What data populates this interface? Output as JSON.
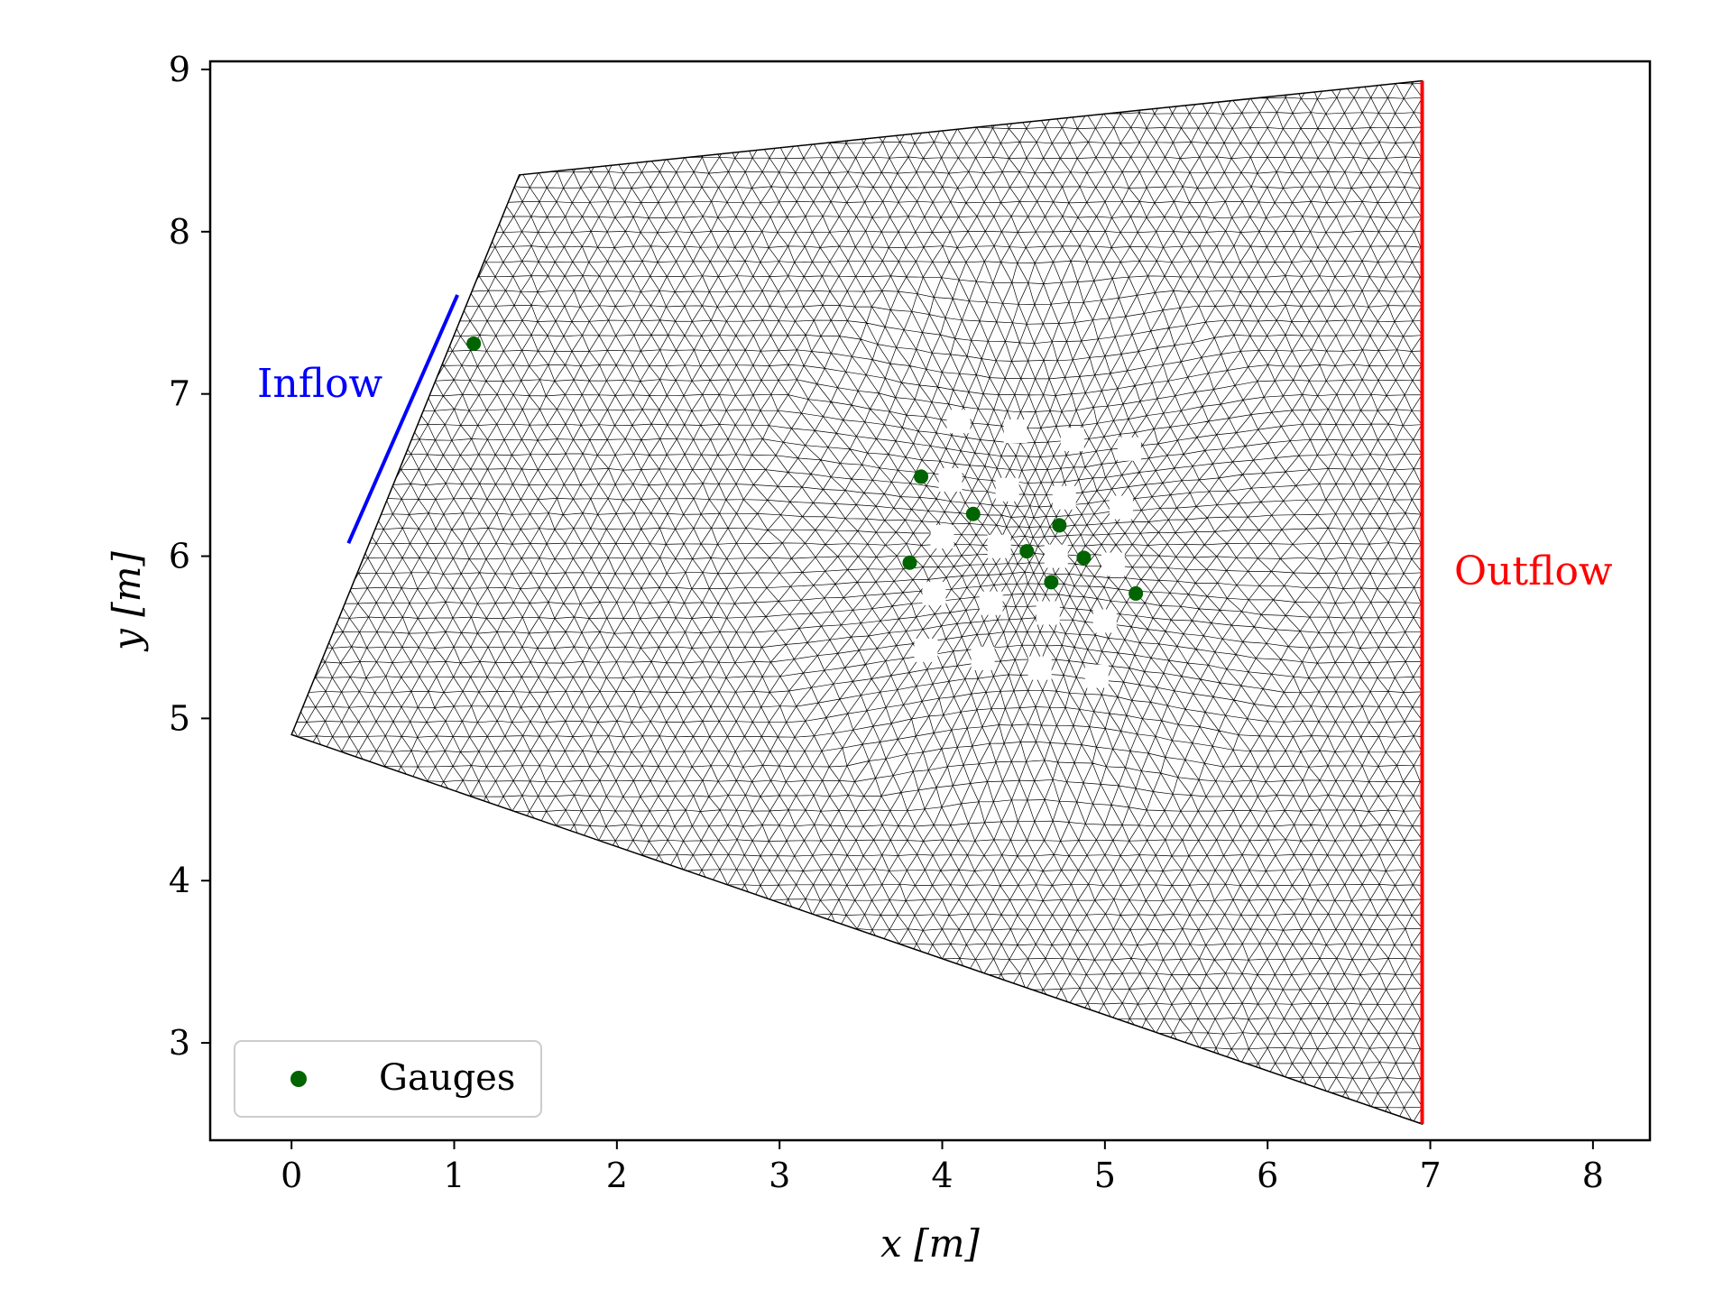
{
  "chart_data": {
    "type": "scatter",
    "title": "",
    "xlabel": "x [m]",
    "ylabel": "y [m]",
    "xlim": [
      -0.5,
      8.35
    ],
    "ylim": [
      2.4,
      9.05
    ],
    "xticks": [
      "0",
      "1",
      "2",
      "3",
      "4",
      "5",
      "6",
      "7",
      "8"
    ],
    "yticks": [
      "3",
      "4",
      "5",
      "6",
      "7",
      "8",
      "9"
    ],
    "domain_polygon": [
      [
        0.0,
        4.9
      ],
      [
        1.4,
        8.35
      ],
      [
        6.95,
        8.93
      ],
      [
        6.95,
        2.5
      ]
    ],
    "inflow_boundary": {
      "label": "Inflow",
      "color": "#0000ff",
      "points": [
        [
          0.35,
          6.08
        ],
        [
          1.02,
          7.61
        ]
      ]
    },
    "outflow_boundary": {
      "label": "Outflow",
      "color": "#ff0000",
      "points": [
        [
          6.95,
          2.5
        ],
        [
          6.95,
          8.93
        ]
      ]
    },
    "obstacles": [
      [
        4.1,
        6.83
      ],
      [
        4.45,
        6.77
      ],
      [
        4.8,
        6.72
      ],
      [
        5.15,
        6.66
      ],
      [
        4.05,
        6.47
      ],
      [
        4.4,
        6.41
      ],
      [
        4.75,
        6.36
      ],
      [
        5.1,
        6.3
      ],
      [
        4.0,
        6.12
      ],
      [
        4.35,
        6.06
      ],
      [
        4.7,
        6.0
      ],
      [
        5.05,
        5.95
      ],
      [
        3.95,
        5.77
      ],
      [
        4.3,
        5.71
      ],
      [
        4.65,
        5.65
      ],
      [
        5.0,
        5.6
      ],
      [
        3.9,
        5.42
      ],
      [
        4.25,
        5.37
      ],
      [
        4.6,
        5.31
      ],
      [
        4.95,
        5.26
      ]
    ],
    "series": [
      {
        "name": "Gauges",
        "color": "#006400",
        "points": [
          [
            1.12,
            7.31
          ],
          [
            3.87,
            6.49
          ],
          [
            4.19,
            6.26
          ],
          [
            4.72,
            6.19
          ],
          [
            3.8,
            5.96
          ],
          [
            4.52,
            6.03
          ],
          [
            4.87,
            5.99
          ],
          [
            4.67,
            5.84
          ],
          [
            5.19,
            5.77
          ]
        ]
      }
    ],
    "legend_position": "lower-left",
    "grid": false,
    "mesh_color": "#000000"
  }
}
